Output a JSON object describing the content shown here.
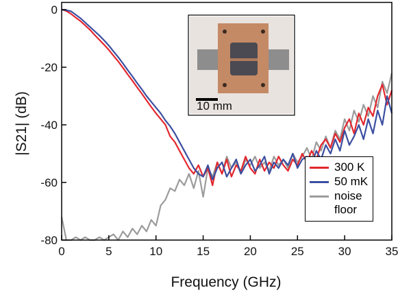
{
  "chart_data": {
    "type": "line",
    "xlabel": "Frequency (GHz)",
    "ylabel": "|S21| (dB)",
    "inset_label": "10 mm",
    "xlim": [
      0,
      35
    ],
    "ylim": [
      -80,
      2.5
    ],
    "xticks": [
      0,
      5,
      10,
      15,
      20,
      25,
      30,
      35
    ],
    "yticks": [
      0,
      -20,
      -40,
      -60,
      -80
    ],
    "legend": "lower right",
    "x": [
      0,
      0.5,
      1,
      1.5,
      2,
      2.5,
      3,
      3.5,
      4,
      4.5,
      5,
      5.5,
      6,
      6.5,
      7,
      7.5,
      8,
      8.5,
      9,
      9.5,
      10,
      10.5,
      11,
      11.5,
      12,
      12.5,
      13,
      13.5,
      14,
      14.5,
      15,
      15.5,
      16,
      16.5,
      17,
      17.5,
      18,
      18.5,
      19,
      19.5,
      20,
      20.5,
      21,
      21.5,
      22,
      22.5,
      23,
      23.5,
      24,
      24.5,
      25,
      25.5,
      26,
      26.5,
      27,
      27.5,
      28,
      28.5,
      29,
      29.5,
      30,
      30.5,
      31,
      31.5,
      32,
      32.5,
      33,
      33.5,
      34,
      34.5,
      35
    ],
    "series": [
      {
        "name": "noise floor",
        "color": "#9b9b9b",
        "values": [
          -72,
          -80,
          -80,
          -79,
          -80,
          -79,
          -80,
          -80,
          -79,
          -80,
          -79,
          -78,
          -80,
          -77,
          -79,
          -76,
          -78,
          -75,
          -77,
          -73,
          -75,
          -68,
          -66,
          -62,
          -63,
          -59,
          -61,
          -57,
          -62,
          -56,
          -65,
          -55,
          -58,
          -53,
          -57,
          -51,
          -55,
          -53,
          -57,
          -52,
          -54,
          -51,
          -55,
          -53,
          -56,
          -51,
          -54,
          -52,
          -55,
          -50,
          -53,
          -51,
          -48,
          -52,
          -46,
          -49,
          -44,
          -48,
          -42,
          -45,
          -38,
          -42,
          -35,
          -39,
          -33,
          -37,
          -30,
          -34,
          -25,
          -29,
          -22
        ]
      },
      {
        "name": "300 K",
        "color": "#e3262d",
        "values": [
          0,
          -0.5,
          -1.5,
          -2.8,
          -4,
          -5.5,
          -7,
          -8.8,
          -10.5,
          -12.2,
          -14,
          -16,
          -18,
          -20.2,
          -22.5,
          -24.7,
          -27,
          -29.2,
          -31.5,
          -33.8,
          -36,
          -38,
          -40,
          -44,
          -46,
          -49,
          -52,
          -55,
          -57,
          -54,
          -58,
          -55,
          -61,
          -53,
          -57,
          -52,
          -58,
          -54,
          -56,
          -51,
          -55,
          -57,
          -52,
          -56,
          -53,
          -55,
          -51,
          -54,
          -56,
          -52,
          -54,
          -50,
          -53,
          -49,
          -52,
          -47,
          -45,
          -48,
          -43,
          -46,
          -41,
          -38,
          -43,
          -36,
          -40,
          -34,
          -37,
          -30,
          -26,
          -33,
          -28
        ]
      },
      {
        "name": "50 mK",
        "color": "#3a4ea0",
        "values": [
          0,
          -0.2,
          -0.6,
          -1.8,
          -3,
          -4.5,
          -6,
          -7.5,
          -9,
          -10.7,
          -12.5,
          -14.5,
          -16.5,
          -18.7,
          -21,
          -23.2,
          -25.5,
          -27.7,
          -30,
          -32,
          -34,
          -36,
          -38.5,
          -40.5,
          -43,
          -46,
          -49,
          -52,
          -55,
          -57,
          -58,
          -54,
          -59,
          -55,
          -53,
          -58,
          -55,
          -52,
          -57,
          -54,
          -52,
          -56,
          -54,
          -51,
          -57,
          -53,
          -55,
          -52,
          -54,
          -50,
          -55,
          -52,
          -51,
          -54,
          -49,
          -52,
          -47,
          -50,
          -45,
          -49,
          -42,
          -47,
          -44,
          -40,
          -45,
          -38,
          -43,
          -35,
          -40,
          -30,
          -36
        ]
      }
    ]
  }
}
